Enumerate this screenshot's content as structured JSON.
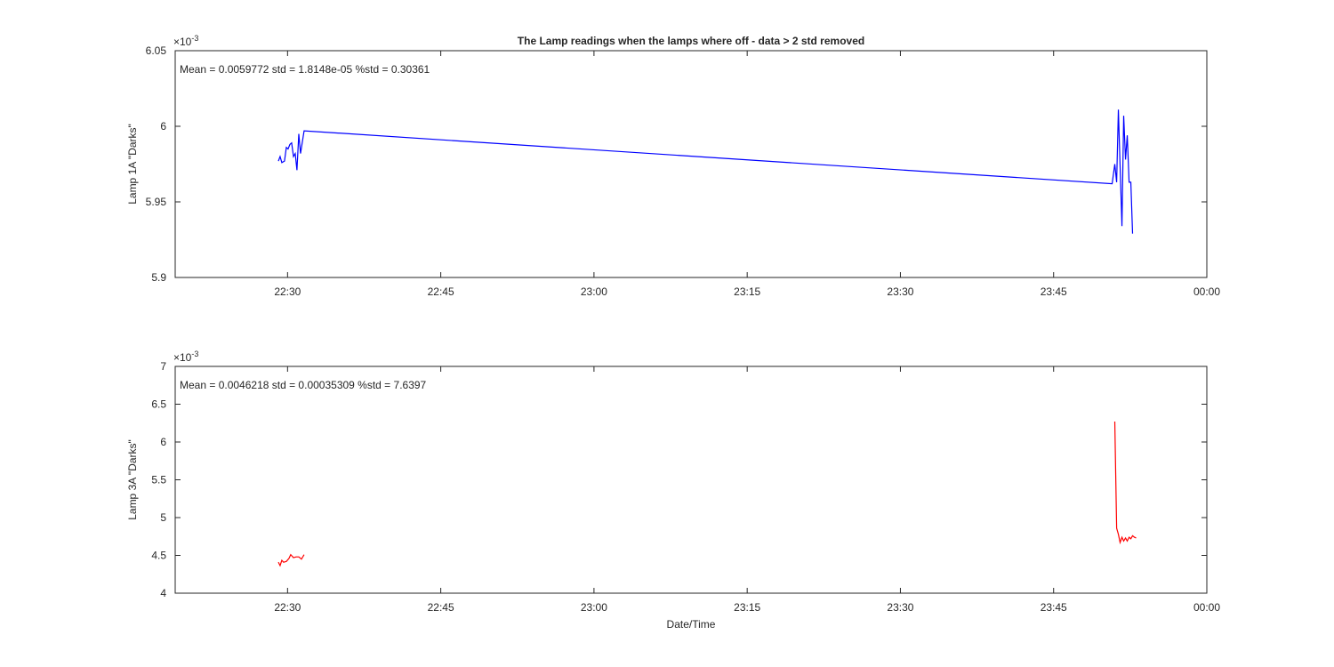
{
  "chart_data": [
    {
      "type": "line",
      "title": "The Lamp readings when the lamps where off - data > 2 std removed",
      "ylabel": "Lamp 1A \"Darks\"",
      "annotation": "Mean = 0.0059772  std = 1.8148e-05  %std = 0.30361",
      "exponent_base": "×10",
      "exponent": "-3",
      "color": "#0000ff",
      "x": [
        1349.1,
        1349.27,
        1349.44,
        1349.7,
        1349.88,
        1350.05,
        1350.23,
        1350.4,
        1350.58,
        1350.75,
        1350.92,
        1351.1,
        1351.27,
        1351.62,
        1430.73,
        1430.99,
        1431.17,
        1431.34,
        1431.69,
        1431.86,
        1432.04,
        1432.21,
        1432.39,
        1432.56,
        1432.73
      ],
      "values": [
        5.977,
        5.98,
        5.976,
        5.977,
        5.986,
        5.985,
        5.988,
        5.989,
        5.98,
        5.982,
        5.971,
        5.995,
        5.982,
        5.997,
        5.962,
        5.975,
        5.963,
        6.011,
        5.934,
        6.007,
        5.978,
        5.994,
        5.963,
        5.963,
        5.929
      ],
      "xlim": [
        1339,
        1440
      ],
      "xticks": [
        {
          "value": 1350,
          "label": "22:30"
        },
        {
          "value": 1365,
          "label": "22:45"
        },
        {
          "value": 1380,
          "label": "23:00"
        },
        {
          "value": 1395,
          "label": "23:15"
        },
        {
          "value": 1410,
          "label": "23:30"
        },
        {
          "value": 1425,
          "label": "23:45"
        },
        {
          "value": 1440,
          "label": "00:00"
        }
      ],
      "ylim": [
        5.9,
        6.05
      ],
      "yticks": [
        5.9,
        5.95,
        6,
        6.05
      ]
    },
    {
      "type": "line",
      "ylabel": "Lamp 3A \"Darks\"",
      "xlabel": "Date/Time",
      "annotation": "Mean = 0.0046218  std = 0.00035309  %std = 7.6397",
      "exponent_base": "×10",
      "exponent": "-3",
      "color": "#ff0000",
      "x": [
        1349.1,
        1349.27,
        1349.44,
        1349.61,
        1349.88,
        1350.14,
        1350.31,
        1350.58,
        1350.84,
        1351.1,
        1351.36,
        1351.62,
        null,
        1430.99,
        1431.17,
        1431.34,
        1431.51,
        1431.69,
        1431.86,
        1432.04,
        1432.21,
        1432.39,
        1432.56,
        1432.73,
        1432.91,
        1433.08
      ],
      "values": [
        4.41,
        4.365,
        4.435,
        4.41,
        4.42,
        4.46,
        4.51,
        4.47,
        4.48,
        4.48,
        4.45,
        4.51,
        null,
        6.27,
        4.86,
        4.78,
        4.67,
        4.74,
        4.69,
        4.73,
        4.69,
        4.74,
        4.72,
        4.76,
        4.74,
        4.73
      ],
      "xlim": [
        1339,
        1440
      ],
      "xticks": [
        {
          "value": 1350,
          "label": "22:30"
        },
        {
          "value": 1365,
          "label": "22:45"
        },
        {
          "value": 1380,
          "label": "23:00"
        },
        {
          "value": 1395,
          "label": "23:15"
        },
        {
          "value": 1410,
          "label": "23:30"
        },
        {
          "value": 1425,
          "label": "23:45"
        },
        {
          "value": 1440,
          "label": "00:00"
        }
      ],
      "ylim": [
        4,
        7
      ],
      "yticks": [
        4,
        4.5,
        5,
        5.5,
        6,
        6.5,
        7
      ]
    }
  ]
}
